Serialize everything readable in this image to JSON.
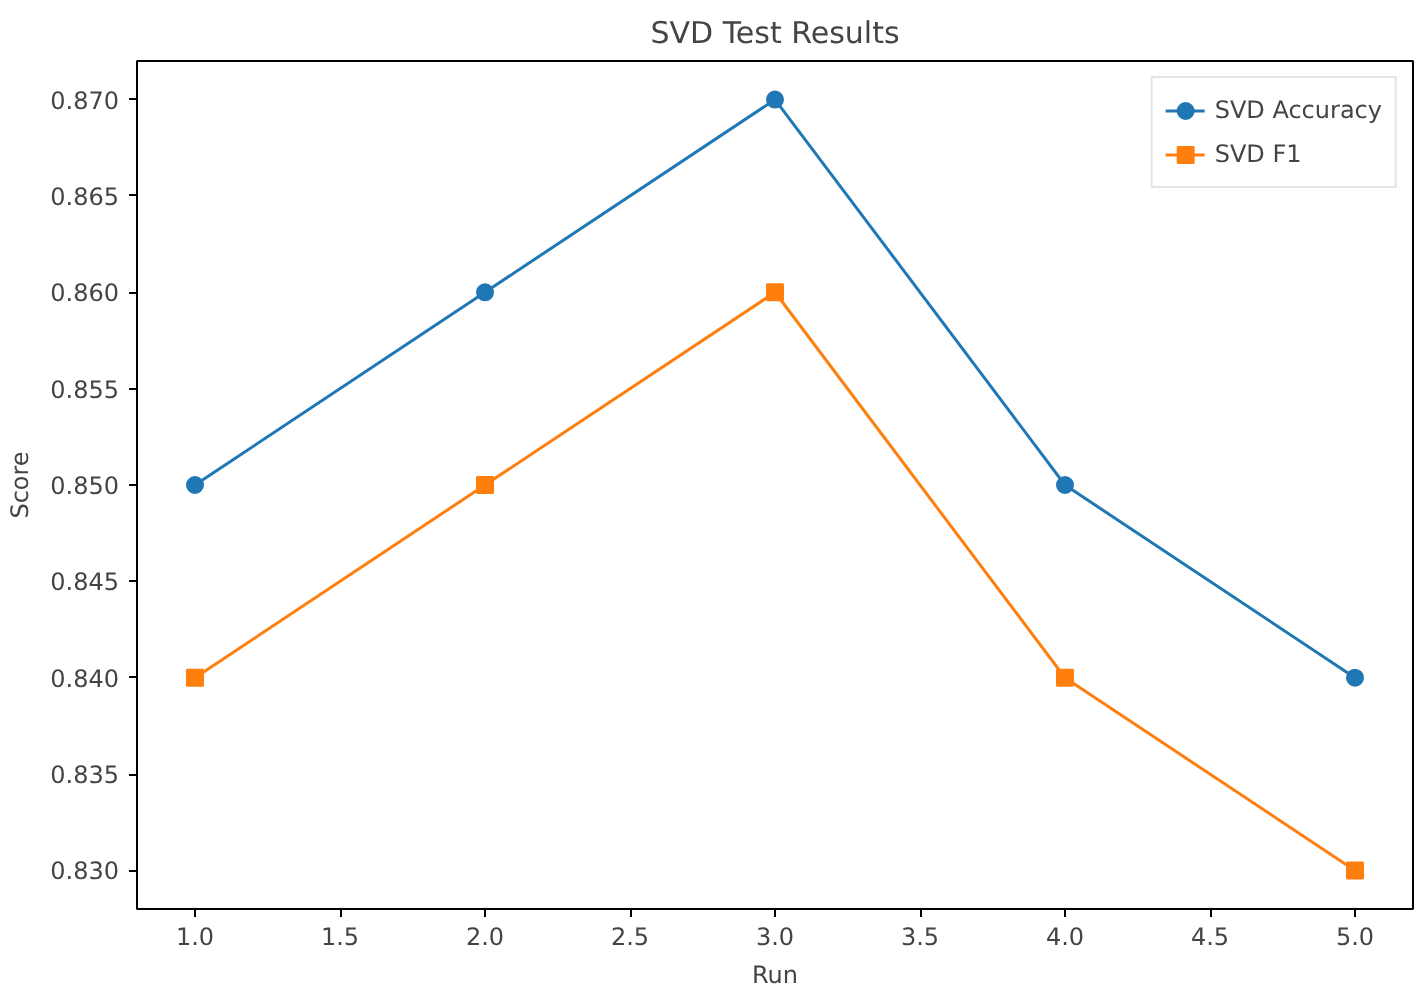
{
  "chart_data": {
    "type": "line",
    "title": "SVD Test Results",
    "xlabel": "Run",
    "ylabel": "Score",
    "x": [
      1,
      2,
      3,
      4,
      5
    ],
    "series": [
      {
        "name": "SVD Accuracy",
        "color": "#1f77b4",
        "marker": "circle",
        "values": [
          0.85,
          0.86,
          0.87,
          0.85,
          0.84
        ]
      },
      {
        "name": "SVD F1",
        "color": "#ff7f0e",
        "marker": "square",
        "values": [
          0.84,
          0.85,
          0.86,
          0.84,
          0.83
        ]
      }
    ],
    "xlim": [
      0.8,
      5.2
    ],
    "ylim": [
      0.828,
      0.872
    ],
    "xticks": [
      {
        "value": 1,
        "label": "1.0"
      },
      {
        "value": 1.5,
        "label": "1.5"
      },
      {
        "value": 2,
        "label": "2.0"
      },
      {
        "value": 2.5,
        "label": "2.5"
      },
      {
        "value": 3,
        "label": "3.0"
      },
      {
        "value": 3.5,
        "label": "3.5"
      },
      {
        "value": 4,
        "label": "4.0"
      },
      {
        "value": 4.5,
        "label": "4.5"
      },
      {
        "value": 5,
        "label": "5.0"
      }
    ],
    "yticks": [
      {
        "value": 0.83,
        "label": "0.830"
      },
      {
        "value": 0.835,
        "label": "0.835"
      },
      {
        "value": 0.84,
        "label": "0.840"
      },
      {
        "value": 0.845,
        "label": "0.845"
      },
      {
        "value": 0.85,
        "label": "0.850"
      },
      {
        "value": 0.855,
        "label": "0.855"
      },
      {
        "value": 0.86,
        "label": "0.860"
      },
      {
        "value": 0.865,
        "label": "0.865"
      },
      {
        "value": 0.87,
        "label": "0.870"
      }
    ],
    "grid": false,
    "legend": "top right",
    "line_style": "solid"
  }
}
